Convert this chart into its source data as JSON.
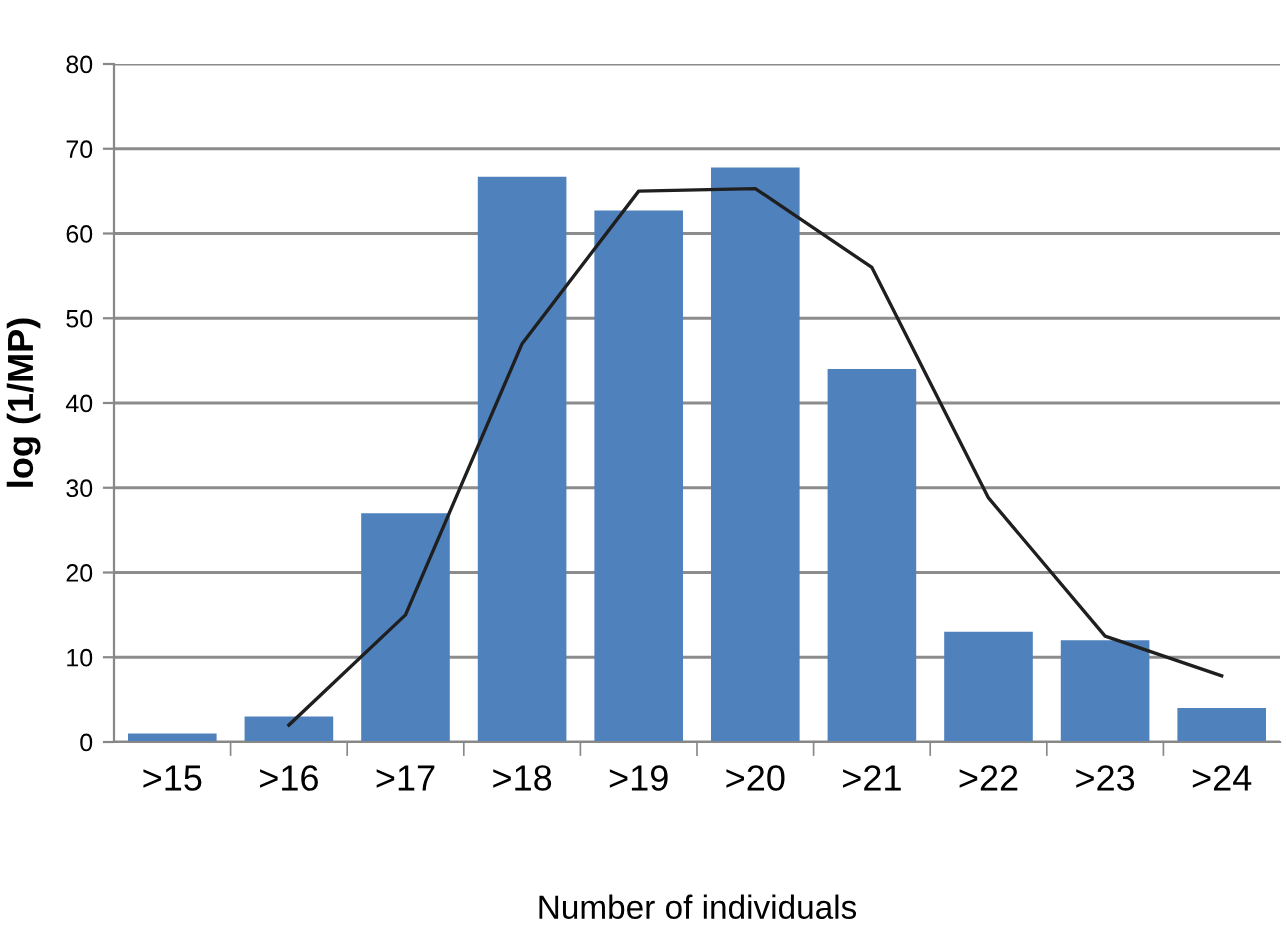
{
  "chart_data": {
    "type": "bar",
    "xlabel": "Number of individuals",
    "ylabel": "log (1/MP)",
    "categories": [
      ">15",
      ">16",
      ">17",
      ">18",
      ">19",
      ">20",
      ">21",
      ">22",
      ">23",
      ">24"
    ],
    "series": [
      {
        "color": "#4f81bd",
        "values": [
          1,
          3,
          27,
          66.7,
          62.7,
          67.8,
          44,
          13,
          12,
          4
        ]
      },
      {
        "type": "line",
        "color": "#1f1f1f",
        "values": [
          null,
          2,
          15,
          47,
          65,
          65.3,
          56,
          28.8,
          12.5,
          7.8
        ]
      }
    ],
    "ylim": [
      0,
      80
    ],
    "yticks": [
      0,
      10,
      20,
      30,
      40,
      50,
      60,
      70,
      80
    ],
    "grid": "y",
    "legend": false,
    "marker": "none",
    "line_style": "solid"
  }
}
